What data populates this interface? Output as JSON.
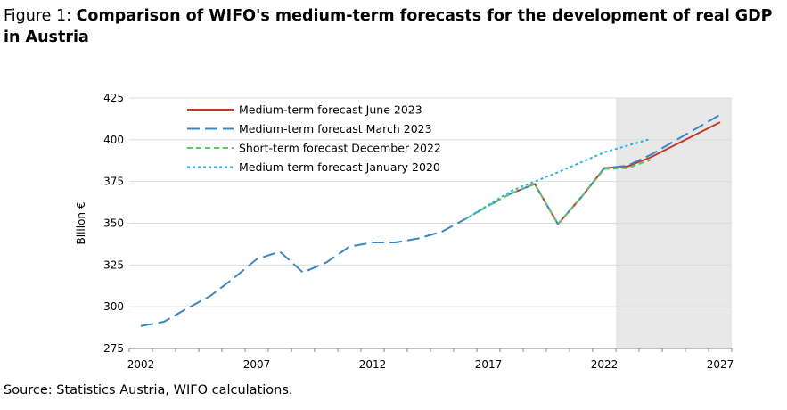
{
  "figure": {
    "title_prefix": "Figure 1: ",
    "title": "Comparison of WIFO's medium-term forecasts for the development of real GDP in Austria",
    "source": "Source: Statistics Austria, WIFO calculations."
  },
  "chart_data": {
    "type": "line",
    "ylabel": "Billion €",
    "xlabel": "",
    "xlim": [
      2002,
      2027
    ],
    "ylim": [
      275,
      425
    ],
    "x_ticks": [
      2002,
      2007,
      2012,
      2017,
      2022,
      2027
    ],
    "y_ticks": [
      275,
      300,
      325,
      350,
      375,
      400,
      425
    ],
    "grid": "horizontal",
    "legend_position": "top-left",
    "forecast_shading": {
      "from": 2022.5,
      "to": 2027.5,
      "color": "#e8e8e8"
    },
    "series": [
      {
        "name": "Medium-term forecast June 2023",
        "color": "#c0392b",
        "dash": "solid",
        "x": [
          2018,
          2019,
          2020,
          2021,
          2022,
          2023,
          2024,
          2025,
          2026,
          2027
        ],
        "y": [
          368,
          373.5,
          349.5,
          365.5,
          383,
          384,
          389.5,
          396.5,
          403.5,
          410.5
        ]
      },
      {
        "name": "Medium-term forecast March 2023",
        "color": "#3b87c4",
        "dash": "long-dash",
        "x": [
          2002,
          2003,
          2004,
          2005,
          2006,
          2007,
          2008,
          2009,
          2010,
          2011,
          2012,
          2013,
          2014,
          2015,
          2016,
          2017,
          2018,
          2019,
          2020,
          2021,
          2022,
          2023,
          2024,
          2025,
          2026,
          2027
        ],
        "y": [
          288.5,
          291,
          299,
          306.5,
          317,
          328.5,
          333,
          320.5,
          326.5,
          336,
          338.5,
          338.5,
          341,
          345,
          352.5,
          360.5,
          368,
          373.5,
          349.5,
          365.5,
          383,
          384.5,
          391,
          399,
          407,
          415
        ]
      },
      {
        "name": "Short-term forecast December 2022",
        "color": "#66c266",
        "dash": "short-dash",
        "x": [
          2016,
          2017,
          2018,
          2019,
          2020,
          2021,
          2022,
          2023,
          2024
        ],
        "y": [
          352.5,
          360.5,
          368,
          373.5,
          349.5,
          365.5,
          382.5,
          383,
          388
        ]
      },
      {
        "name": "Medium-term forecast January 2020",
        "color": "#27b4e0",
        "dash": "dotted",
        "x": [
          2016,
          2017,
          2018,
          2019,
          2020,
          2021,
          2022,
          2023,
          2024
        ],
        "y": [
          352.5,
          361,
          369.5,
          375,
          380.5,
          386.5,
          392.5,
          396.5,
          400.5
        ]
      }
    ]
  }
}
